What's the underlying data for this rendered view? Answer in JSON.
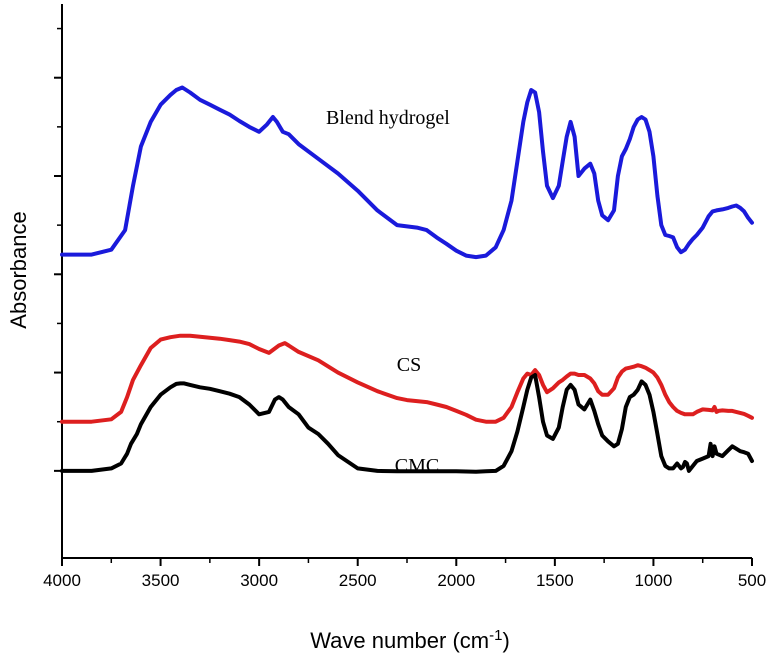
{
  "chart_data": {
    "type": "line",
    "xlabel": "Wave number (cm",
    "xlabel_sup": "-1",
    "xlabel_close": ")",
    "ylabel": "Absorbance",
    "xlim": [
      4000,
      500
    ],
    "x_reversed": true,
    "x_ticks": [
      4000,
      3500,
      3000,
      2500,
      2000,
      1500,
      1000,
      500
    ],
    "y_ticks_labeled": false,
    "grid": false,
    "legend": "none",
    "series": [
      {
        "name": "Blend hydrogel",
        "color": "#1a1adb",
        "x": [
          4000,
          3850,
          3750,
          3680,
          3640,
          3600,
          3550,
          3500,
          3450,
          3420,
          3390,
          3350,
          3300,
          3250,
          3200,
          3150,
          3100,
          3050,
          3000,
          2960,
          2930,
          2910,
          2880,
          2850,
          2800,
          2700,
          2600,
          2500,
          2400,
          2300,
          2200,
          2150,
          2100,
          2050,
          2000,
          1950,
          1900,
          1850,
          1800,
          1760,
          1720,
          1690,
          1660,
          1640,
          1620,
          1600,
          1580,
          1560,
          1540,
          1510,
          1480,
          1460,
          1440,
          1420,
          1400,
          1380,
          1350,
          1320,
          1300,
          1280,
          1260,
          1230,
          1200,
          1180,
          1160,
          1140,
          1120,
          1100,
          1080,
          1060,
          1040,
          1020,
          1000,
          980,
          960,
          940,
          920,
          900,
          880,
          860,
          840,
          820,
          800,
          780,
          750,
          720,
          700,
          680,
          650,
          620,
          600,
          580,
          560,
          540,
          520,
          500
        ],
        "values": [
          5.4,
          5.4,
          5.5,
          5.9,
          6.8,
          7.6,
          8.1,
          8.45,
          8.65,
          8.75,
          8.8,
          8.7,
          8.55,
          8.45,
          8.35,
          8.25,
          8.12,
          8.0,
          7.9,
          8.05,
          8.2,
          8.1,
          7.9,
          7.85,
          7.65,
          7.35,
          7.05,
          6.7,
          6.3,
          6.0,
          5.95,
          5.9,
          5.75,
          5.62,
          5.48,
          5.38,
          5.35,
          5.38,
          5.55,
          5.9,
          6.5,
          7.3,
          8.1,
          8.5,
          8.75,
          8.7,
          8.3,
          7.5,
          6.8,
          6.55,
          6.8,
          7.3,
          7.8,
          8.1,
          7.8,
          7.0,
          7.15,
          7.25,
          7.05,
          6.5,
          6.2,
          6.1,
          6.3,
          7.0,
          7.4,
          7.55,
          7.75,
          8.0,
          8.15,
          8.2,
          8.15,
          7.9,
          7.4,
          6.6,
          6.0,
          5.8,
          5.78,
          5.75,
          5.55,
          5.45,
          5.5,
          5.62,
          5.72,
          5.8,
          5.95,
          6.18,
          6.28,
          6.3,
          6.32,
          6.35,
          6.38,
          6.4,
          6.35,
          6.28,
          6.15,
          6.05
        ]
      },
      {
        "name": "CS",
        "color": "#dd1f1f",
        "x": [
          4000,
          3850,
          3750,
          3700,
          3670,
          3640,
          3600,
          3550,
          3500,
          3450,
          3400,
          3350,
          3300,
          3250,
          3200,
          3150,
          3100,
          3050,
          3000,
          2950,
          2900,
          2870,
          2850,
          2800,
          2700,
          2600,
          2500,
          2400,
          2300,
          2250,
          2200,
          2150,
          2100,
          2050,
          2000,
          1950,
          1900,
          1850,
          1800,
          1760,
          1720,
          1690,
          1660,
          1640,
          1620,
          1600,
          1580,
          1560,
          1540,
          1510,
          1480,
          1460,
          1440,
          1420,
          1400,
          1380,
          1350,
          1320,
          1300,
          1280,
          1260,
          1230,
          1200,
          1180,
          1160,
          1140,
          1120,
          1100,
          1080,
          1060,
          1040,
          1020,
          1000,
          980,
          960,
          940,
          920,
          900,
          880,
          860,
          840,
          820,
          800,
          780,
          750,
          720,
          700,
          690,
          680,
          670,
          650,
          620,
          600,
          580,
          560,
          540,
          520,
          500
        ],
        "values": [
          2.0,
          2.0,
          2.05,
          2.2,
          2.5,
          2.85,
          3.15,
          3.5,
          3.67,
          3.72,
          3.75,
          3.75,
          3.73,
          3.71,
          3.69,
          3.66,
          3.63,
          3.58,
          3.48,
          3.4,
          3.55,
          3.6,
          3.55,
          3.42,
          3.25,
          3.0,
          2.8,
          2.62,
          2.48,
          2.44,
          2.42,
          2.4,
          2.35,
          2.3,
          2.22,
          2.14,
          2.04,
          2.0,
          2.0,
          2.08,
          2.3,
          2.6,
          2.88,
          2.98,
          2.95,
          3.05,
          2.95,
          2.75,
          2.6,
          2.68,
          2.8,
          2.85,
          2.92,
          2.98,
          2.98,
          2.95,
          2.95,
          2.88,
          2.78,
          2.62,
          2.55,
          2.55,
          2.68,
          2.9,
          3.02,
          3.08,
          3.1,
          3.12,
          3.15,
          3.13,
          3.1,
          3.05,
          3.0,
          2.9,
          2.75,
          2.55,
          2.4,
          2.3,
          2.22,
          2.18,
          2.15,
          2.15,
          2.15,
          2.2,
          2.25,
          2.24,
          2.23,
          2.3,
          2.2,
          2.22,
          2.23,
          2.22,
          2.22,
          2.2,
          2.18,
          2.16,
          2.12,
          2.08
        ]
      },
      {
        "name": "CMC",
        "color": "#000000",
        "x": [
          4000,
          3850,
          3750,
          3700,
          3670,
          3650,
          3620,
          3600,
          3550,
          3500,
          3450,
          3420,
          3400,
          3380,
          3350,
          3300,
          3250,
          3200,
          3150,
          3100,
          3050,
          3000,
          2950,
          2920,
          2900,
          2880,
          2850,
          2800,
          2750,
          2700,
          2650,
          2600,
          2500,
          2400,
          2300,
          2200,
          2100,
          2000,
          1900,
          1850,
          1800,
          1760,
          1720,
          1690,
          1660,
          1640,
          1620,
          1600,
          1580,
          1560,
          1540,
          1510,
          1480,
          1460,
          1440,
          1420,
          1400,
          1380,
          1350,
          1320,
          1300,
          1280,
          1260,
          1230,
          1200,
          1180,
          1160,
          1140,
          1120,
          1100,
          1080,
          1060,
          1040,
          1020,
          1000,
          980,
          960,
          940,
          920,
          900,
          880,
          860,
          850,
          840,
          830,
          820,
          800,
          780,
          750,
          720,
          710,
          700,
          690,
          680,
          650,
          620,
          600,
          580,
          560,
          540,
          520,
          500
        ],
        "values": [
          1.0,
          1.0,
          1.05,
          1.15,
          1.35,
          1.55,
          1.75,
          1.95,
          2.3,
          2.55,
          2.7,
          2.77,
          2.78,
          2.78,
          2.75,
          2.7,
          2.67,
          2.62,
          2.57,
          2.5,
          2.35,
          2.15,
          2.2,
          2.45,
          2.5,
          2.45,
          2.3,
          2.15,
          1.88,
          1.75,
          1.55,
          1.32,
          1.05,
          1.0,
          0.99,
          0.99,
          0.99,
          0.99,
          0.98,
          0.99,
          1.0,
          1.1,
          1.4,
          1.8,
          2.3,
          2.65,
          2.9,
          2.95,
          2.5,
          2.0,
          1.72,
          1.65,
          1.88,
          2.3,
          2.65,
          2.75,
          2.65,
          2.35,
          2.25,
          2.45,
          2.22,
          1.95,
          1.72,
          1.6,
          1.5,
          1.55,
          1.85,
          2.3,
          2.5,
          2.55,
          2.65,
          2.82,
          2.75,
          2.55,
          2.2,
          1.75,
          1.3,
          1.1,
          1.05,
          1.05,
          1.15,
          1.05,
          1.08,
          1.18,
          1.15,
          1.0,
          1.1,
          1.2,
          1.25,
          1.3,
          1.55,
          1.3,
          1.5,
          1.35,
          1.3,
          1.42,
          1.5,
          1.45,
          1.4,
          1.38,
          1.35,
          1.2
        ]
      }
    ]
  }
}
